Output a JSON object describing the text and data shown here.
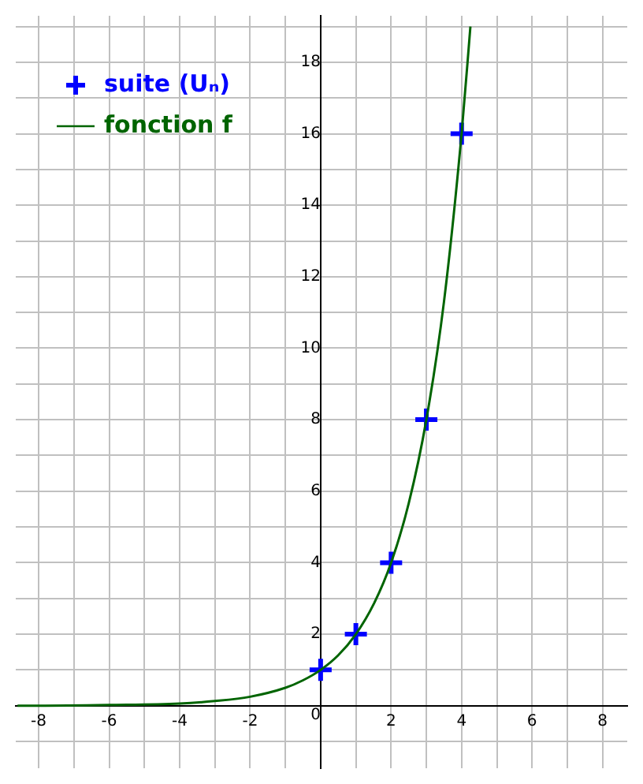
{
  "chart_data": {
    "type": "line",
    "series": [
      {
        "name": "suite (Uₙ)",
        "type": "scatter",
        "color": "#0000ff",
        "marker": "cross",
        "x": [
          0,
          1,
          2,
          3,
          4
        ],
        "values": [
          1,
          2,
          4,
          8,
          16
        ]
      },
      {
        "name": "fonction f",
        "type": "line",
        "color": "#006400",
        "marker": "none",
        "x": [
          -8.6,
          -8,
          -6,
          -4,
          -3,
          -2,
          -1,
          -0.5,
          0,
          0.5,
          1,
          1.5,
          2,
          2.5,
          3,
          3.5,
          4,
          4.25
        ],
        "values": [
          0,
          0,
          0.02,
          0.06,
          0.13,
          0.25,
          0.5,
          0.71,
          1,
          1.41,
          2,
          2.83,
          4,
          5.66,
          8,
          11.3,
          16,
          19
        ]
      }
    ],
    "xlim": [
      -8.65,
      8.7
    ],
    "ylim": [
      -1.75,
      19.3
    ],
    "xticks": [
      -8,
      {
        "value": -7,
        "label": null
      },
      -6,
      {
        "value": -5,
        "label": null
      },
      -4,
      {
        "value": -3,
        "label": null
      },
      -2,
      {
        "value": -1,
        "label": null
      },
      {
        "value": 0,
        "label": null
      },
      {
        "value": 1,
        "label": null
      },
      2,
      {
        "value": 3,
        "label": null
      },
      4,
      {
        "value": 5,
        "label": null
      },
      6,
      {
        "value": 7,
        "label": null
      },
      8
    ],
    "yticks": [
      {
        "value": -1,
        "label": null
      },
      0,
      {
        "value": 1,
        "label": null
      },
      2,
      {
        "value": 3,
        "label": null
      },
      4,
      {
        "value": 5,
        "label": null
      },
      6,
      {
        "value": 7,
        "label": null
      },
      8,
      {
        "value": 9,
        "label": null
      },
      10,
      {
        "value": 11,
        "label": null
      },
      12,
      {
        "value": 13,
        "label": null
      },
      14,
      {
        "value": 15,
        "label": null
      },
      16,
      {
        "value": 17,
        "label": null
      },
      18,
      {
        "value": 19,
        "label": null
      }
    ],
    "grid": true,
    "legend": "top left"
  }
}
